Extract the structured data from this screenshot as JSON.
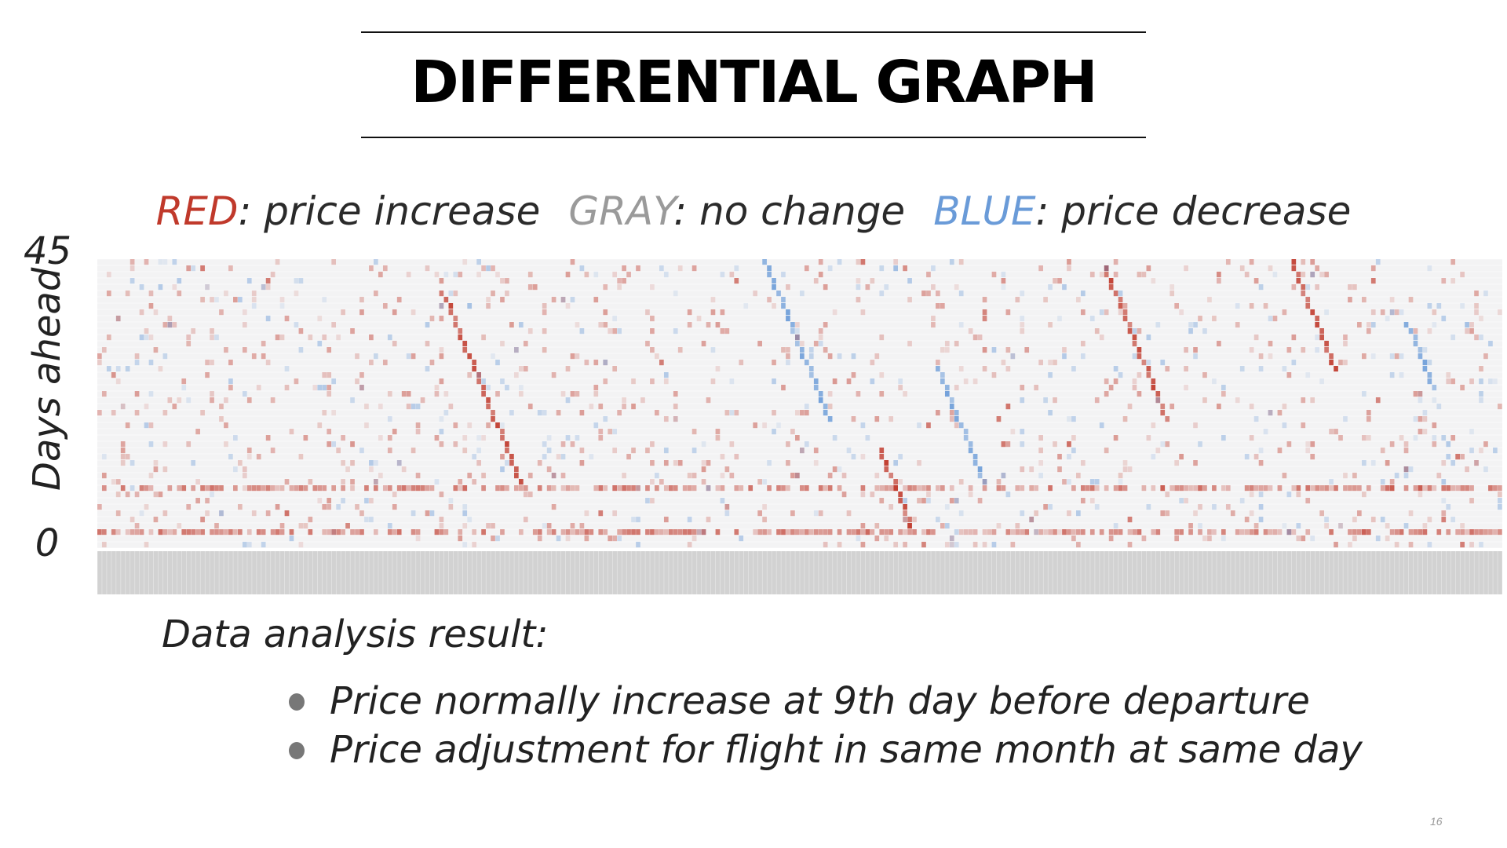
{
  "slide": {
    "title": "DIFFERENTIAL GRAPH",
    "page_number": "16"
  },
  "legend": {
    "red_word": "RED",
    "red_desc": ": price increase",
    "gray_word": "GRAY",
    "gray_desc": ": no change",
    "blue_word": "BLUE",
    "blue_desc": ": price decrease",
    "colors": {
      "increase": "#c0392b",
      "no_change": "#9a9a9a",
      "decrease": "#6a9bd8"
    }
  },
  "notes": {
    "heading": "Data analysis result:",
    "bullets": [
      "Price normally increase at 9th day before departure",
      "Price adjustment for flight in same month at same day"
    ]
  },
  "chart_data": {
    "type": "heatmap",
    "title": "",
    "xlabel": "",
    "ylabel": "Days ahead",
    "ytick_labels": [
      "0",
      "45"
    ],
    "ylim": [
      0,
      45
    ],
    "value_meaning": {
      "positive": "price increase",
      "zero": "no change",
      "negative": "price decrease"
    },
    "grid": true,
    "n_departures": 300,
    "bands": [
      {
        "days_ahead": 9,
        "direction": "increase",
        "note": "strong recurring row"
      },
      {
        "days_ahead": 2,
        "direction": "increase",
        "note": "recurring row"
      }
    ],
    "diagonal_streaks": [
      {
        "direction": "decrease",
        "x_start_frac": 0.52,
        "day_start": 20,
        "day_end": 45
      },
      {
        "direction": "increase",
        "x_start_frac": 0.3,
        "day_start": 10,
        "day_end": 40
      },
      {
        "direction": "increase",
        "x_start_frac": 0.58,
        "day_start": 2,
        "day_end": 15
      },
      {
        "direction": "decrease",
        "x_start_frac": 0.63,
        "day_start": 10,
        "day_end": 28
      },
      {
        "direction": "increase",
        "x_start_frac": 0.76,
        "day_start": 20,
        "day_end": 44
      },
      {
        "direction": "increase",
        "x_start_frac": 0.88,
        "day_start": 28,
        "day_end": 45
      },
      {
        "direction": "decrease",
        "x_start_frac": 0.95,
        "day_start": 25,
        "day_end": 35
      }
    ]
  }
}
